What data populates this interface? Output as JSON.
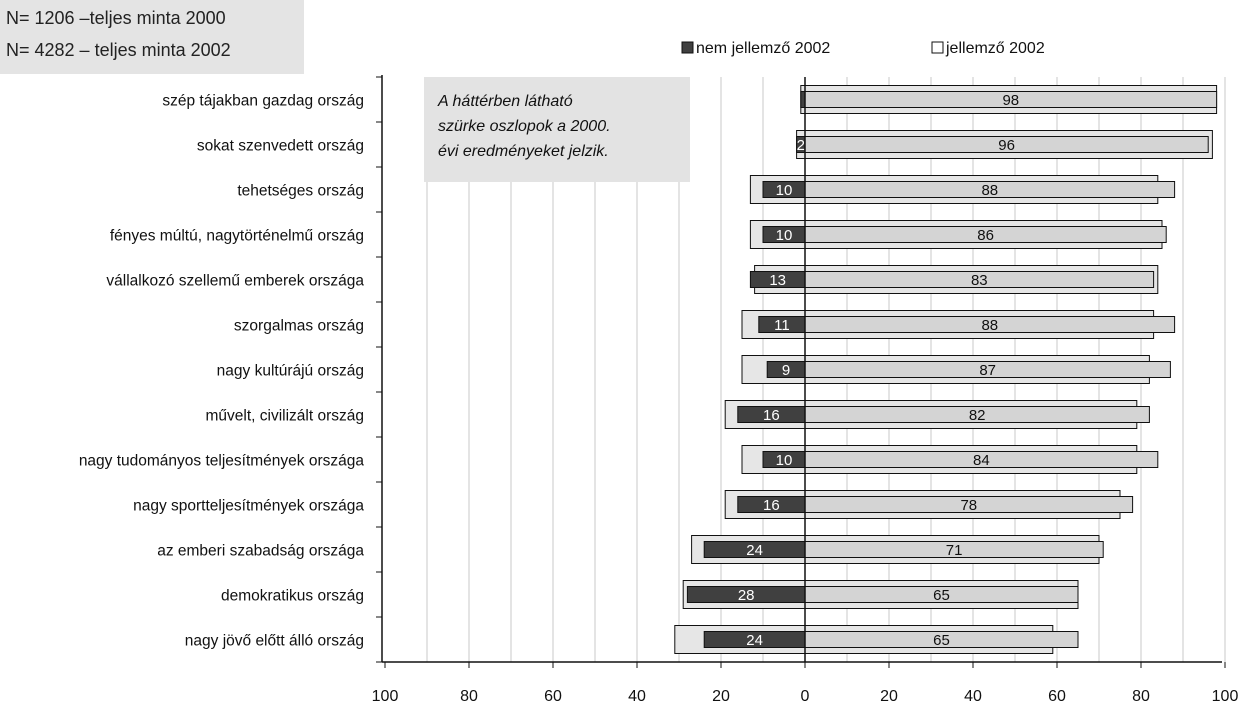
{
  "sample_info": [
    "N= 1206 –teljes minta 2000",
    "N= 4282 – teljes minta 2002"
  ],
  "note": [
    "A háttérben látható",
    "szürke oszlopok a 2000.",
    "évi eredményeket jelzik."
  ],
  "colors": {
    "dark_bar": "#404040",
    "light_bar": "#d4d4d4",
    "bg_bar": "#e6e6e6",
    "note_bg": "#e3e3e3"
  },
  "chart_data": {
    "type": "bar",
    "orientation": "horizontal",
    "stacked": "diverging",
    "categories": [
      "szép tájakban gazdag ország",
      "sokat szenvedett ország",
      "tehetséges ország",
      "fényes múltú, nagytörténelmű ország",
      "vállalkozó szellemű emberek országa",
      "szorgalmas ország",
      "nagy kultúrájú ország",
      "művelt, civilizált ország",
      "nagy tudományos teljesítmények országa",
      "nagy sportteljesítmények országa",
      "az emberi szabadság országa",
      "demokratikus ország",
      "nagy jövő előtt álló ország"
    ],
    "series": [
      {
        "name": "nem jellemző 2002",
        "values": [
          1,
          2,
          10,
          10,
          13,
          11,
          9,
          16,
          10,
          16,
          24,
          28,
          24
        ],
        "labels": [
          "",
          "2",
          "10",
          "10",
          "13",
          "11",
          "9",
          "16",
          "10",
          "16",
          "24",
          "28",
          "24"
        ]
      },
      {
        "name": "jellemző 2002",
        "values": [
          98,
          96,
          88,
          86,
          83,
          88,
          87,
          82,
          84,
          78,
          71,
          65,
          65
        ],
        "labels": [
          "98",
          "96",
          "88",
          "86",
          "83",
          "88",
          "87",
          "82",
          "84",
          "78",
          "71",
          "65",
          "65"
        ]
      }
    ],
    "background_2000": {
      "nem_jellemzo": [
        1,
        2,
        13,
        13,
        12,
        15,
        15,
        19,
        15,
        19,
        27,
        29,
        31
      ],
      "jellemzo": [
        98,
        97,
        84,
        85,
        84,
        83,
        82,
        79,
        79,
        75,
        70,
        65,
        59
      ]
    },
    "x_ticks": [
      "100",
      "80",
      "60",
      "40",
      "20",
      "0",
      "20",
      "40",
      "60",
      "80",
      "100"
    ],
    "xlim": [
      -100,
      100
    ],
    "grid": true,
    "legend_position": "top"
  }
}
